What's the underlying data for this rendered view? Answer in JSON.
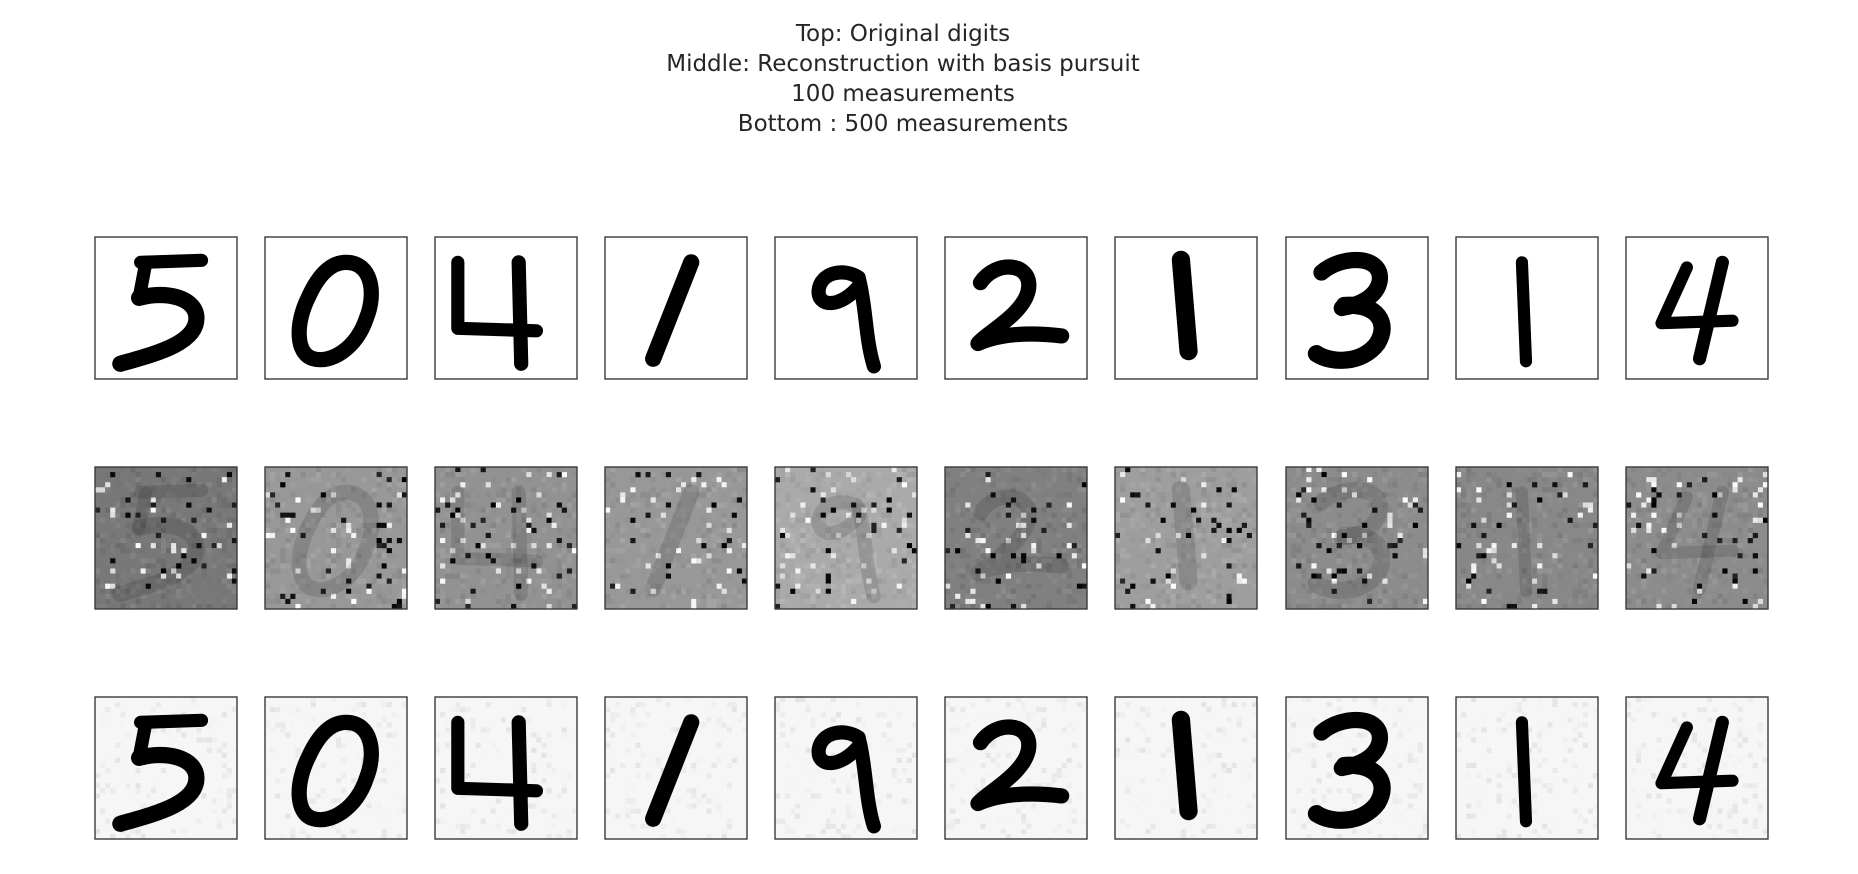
{
  "chart_data": {
    "type": "heatmap",
    "title_lines": [
      "Top: Original digits",
      "Middle: Reconstruction with basis pursuit",
      "100 measurements",
      "Bottom : 500 measurements"
    ],
    "colormap": "gray_r",
    "grid": false,
    "ticks": false,
    "layout": {
      "rows": 3,
      "columns": 10
    },
    "image_size": [
      28,
      28
    ],
    "digits": [
      "5",
      "0",
      "4",
      "1",
      "9",
      "2",
      "1",
      "3",
      "1",
      "4"
    ],
    "rows": [
      {
        "name": "original"
      },
      {
        "name": "reconstruction-100"
      },
      {
        "name": "reconstruction-500"
      }
    ],
    "colors": {
      "ink": "#000000",
      "paper": "#ffffff",
      "frame": "#3a3a3a",
      "text": "#262626"
    }
  }
}
